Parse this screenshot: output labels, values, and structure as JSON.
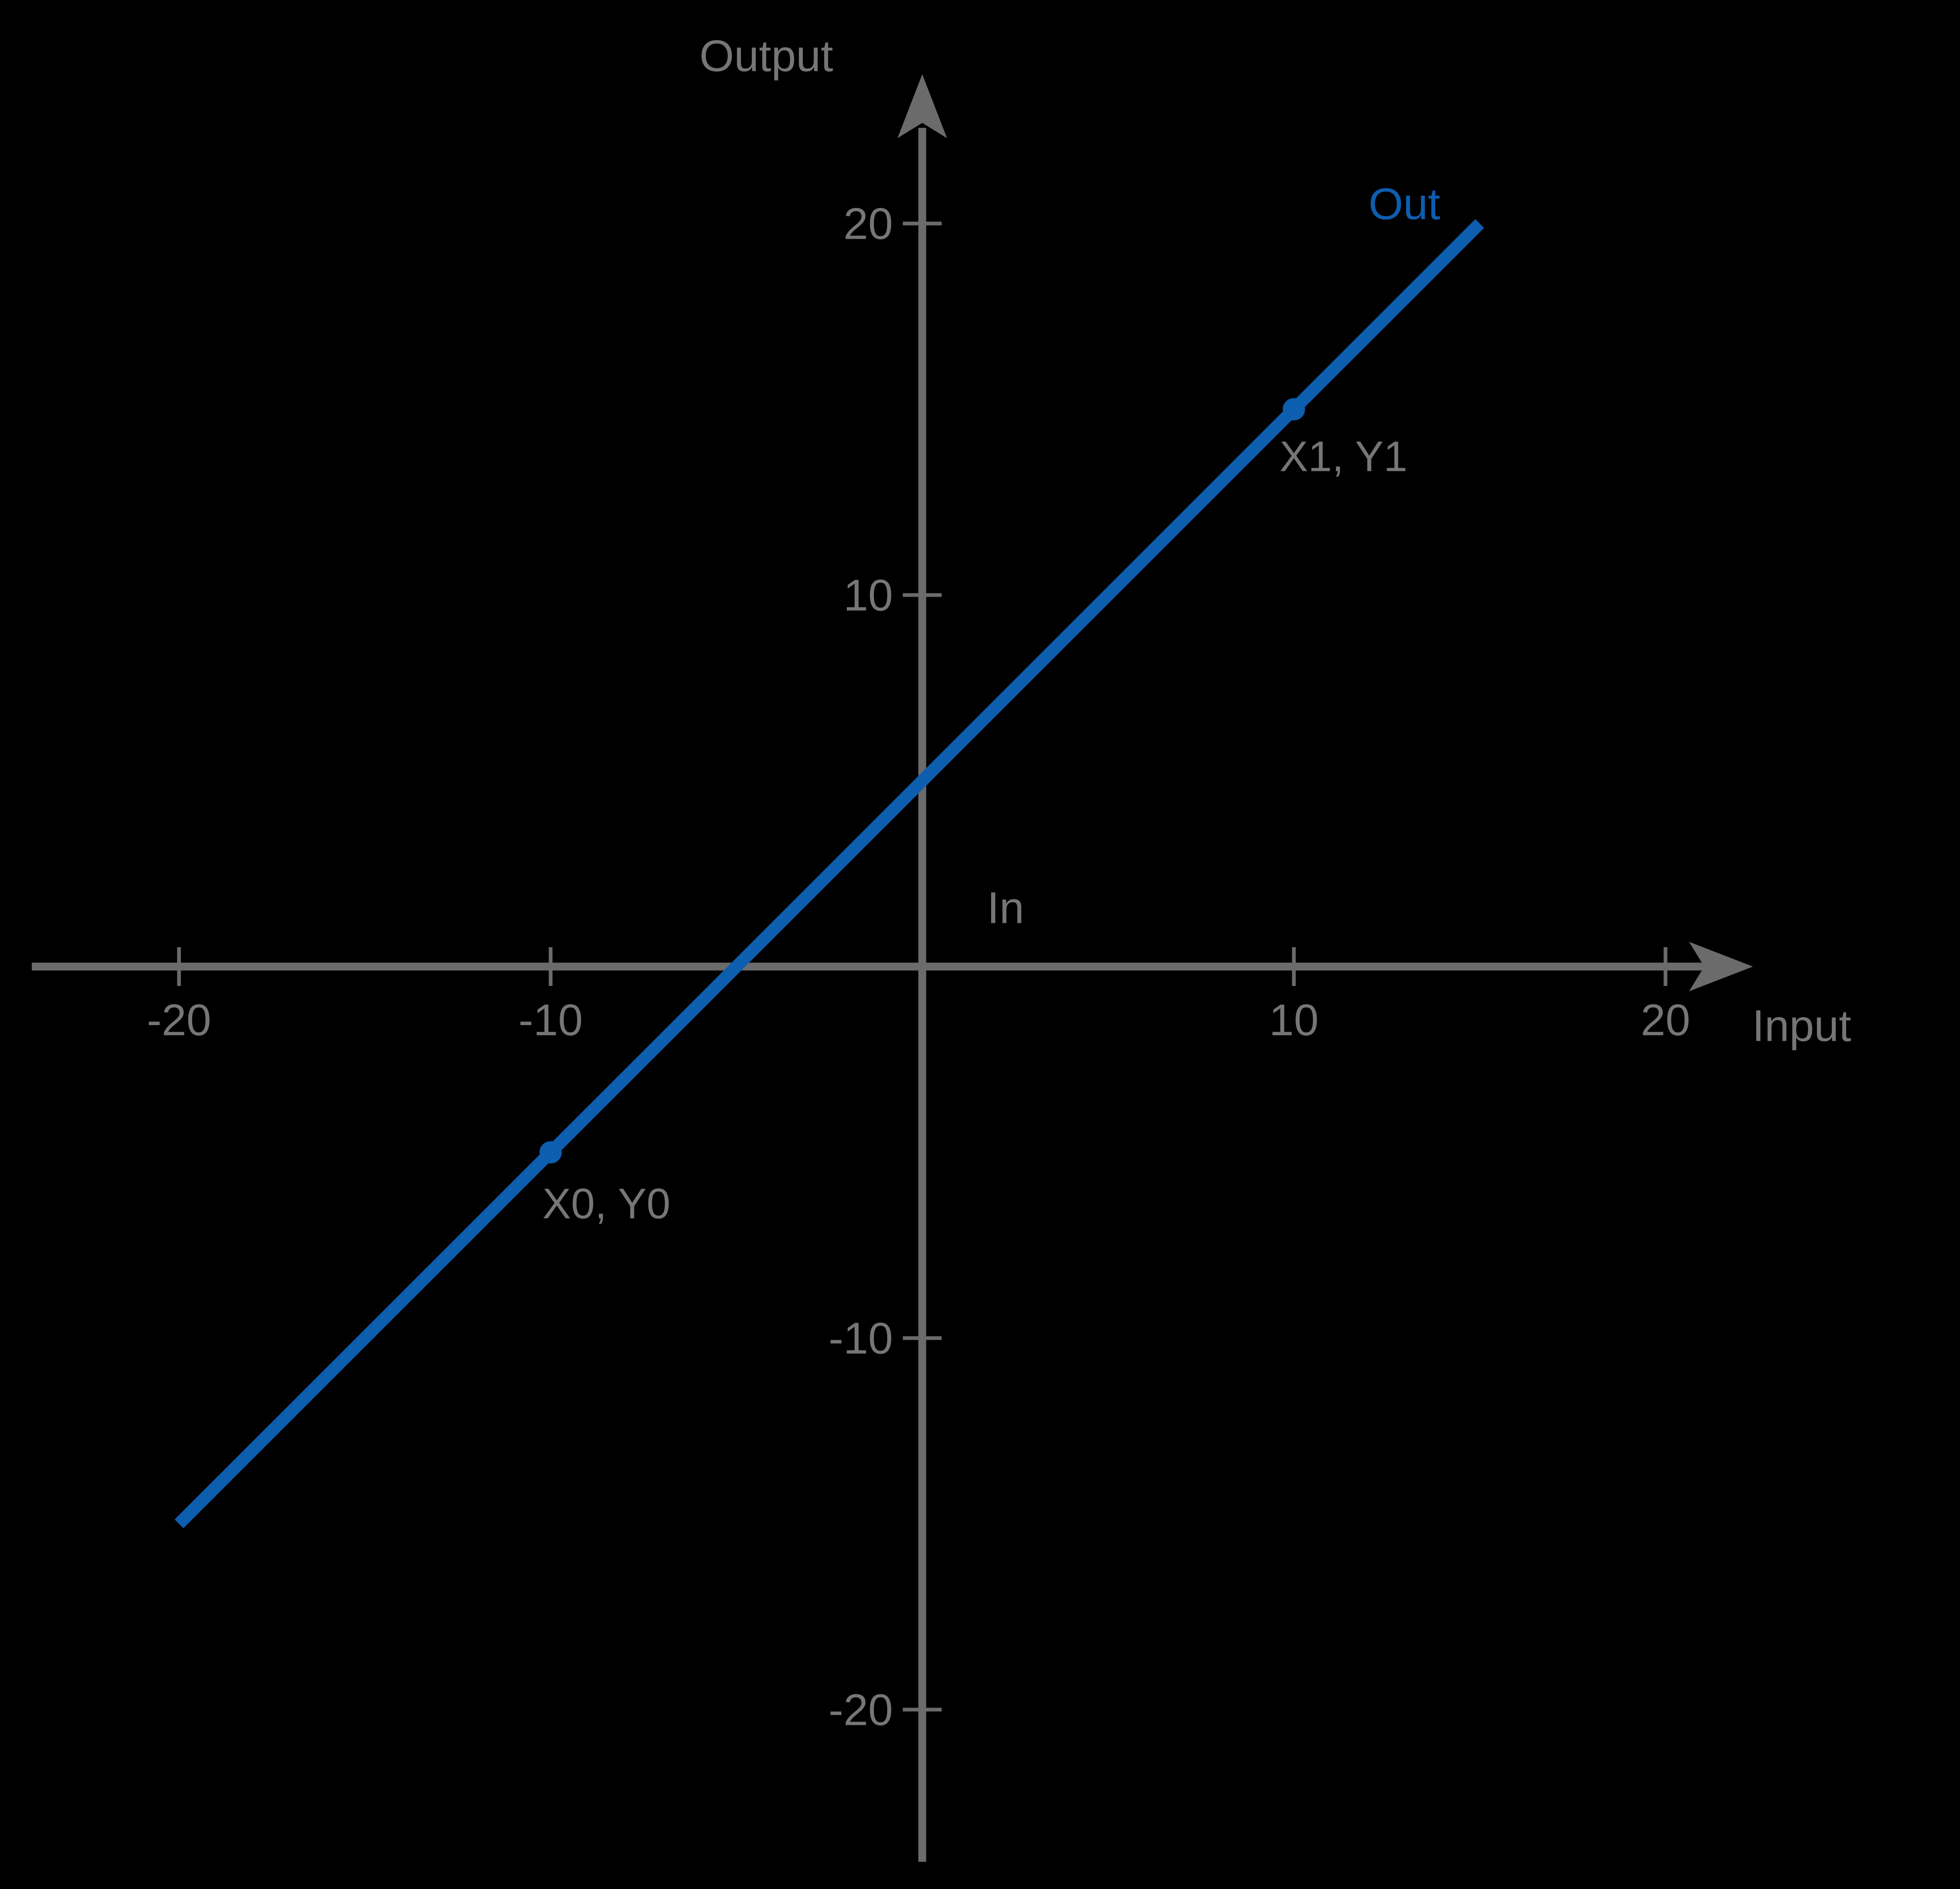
{
  "figure": {
    "background_color": "#000000",
    "axis_color": "#6b6b6b",
    "text_color": "#767676",
    "accent_color": "#0d5eaf"
  },
  "chart_data": {
    "type": "line",
    "title": "",
    "x_axis": {
      "label": "Input",
      "inline_label": "In",
      "ticks": [
        -20,
        -10,
        10,
        20
      ],
      "range": [
        -24,
        22
      ]
    },
    "y_axis": {
      "label": "Output",
      "ticks": [
        20,
        10,
        -10,
        -20
      ],
      "range": [
        -24,
        24
      ]
    },
    "grid": false,
    "series": [
      {
        "name": "Out",
        "color": "#0d5eaf",
        "line_segment": {
          "from": [
            -20,
            -15
          ],
          "to": [
            15,
            20
          ]
        },
        "slope": 1,
        "intercept": 5,
        "marked_points": [
          {
            "label": "X0, Y0",
            "x": -10,
            "y": -5
          },
          {
            "label": "X1, Y1",
            "x": 10,
            "y": 15
          }
        ]
      }
    ]
  }
}
